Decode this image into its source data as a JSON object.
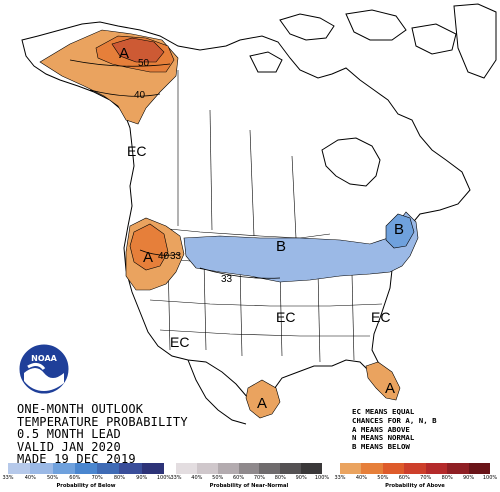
{
  "title_lines": [
    "ONE-MONTH OUTLOOK",
    "TEMPERATURE PROBABILITY",
    "0.5 MONTH LEAD",
    "VALID JAN 2020",
    "MADE 19 DEC 2019"
  ],
  "legend_lines": [
    "EC MEANS EQUAL",
    "CHANCES FOR A, N, B",
    "A MEANS ABOVE",
    "N MEANS NORMAL",
    "B MEANS BELOW"
  ],
  "logo_text": "NOAA",
  "map_labels": {
    "alaska_a": "A",
    "contour_50": "50",
    "contour_40_ak": "40",
    "ec_west_canada": "EC",
    "pnw_a": "A",
    "pnw_40": "40",
    "pnw_33": "33",
    "plains_33": "33",
    "b_central": "B",
    "b_northeast": "B",
    "ec_sw": "EC",
    "ec_central": "EC",
    "ec_east": "EC",
    "texas_a": "A",
    "florida_a": "A"
  },
  "scales": [
    {
      "title": "Probability of Below",
      "ticks": [
        "33%",
        "40%",
        "50%",
        "60%",
        "70%",
        "80%",
        "90%",
        "100%"
      ],
      "colors": [
        "#b6c9ea",
        "#9bb9e6",
        "#6fa1dd",
        "#4a86cf",
        "#3f6bb5",
        "#3a4e9a",
        "#2d3378"
      ]
    },
    {
      "title": "Probability of Near-Normal",
      "ticks": [
        "33%",
        "40%",
        "50%",
        "60%",
        "70%",
        "80%",
        "90%",
        "100%"
      ],
      "colors": [
        "#e3dde0",
        "#cfc7cb",
        "#b3abaf",
        "#8f898c",
        "#6f6b6d",
        "#545153",
        "#3a3839"
      ]
    },
    {
      "title": "Probability of Above",
      "ticks": [
        "33%",
        "40%",
        "50%",
        "60%",
        "70%",
        "80%",
        "90%",
        "100%"
      ],
      "colors": [
        "#eaa35f",
        "#e67f3a",
        "#de5b2b",
        "#cd3f2b",
        "#b42a2b",
        "#8f1f24",
        "#6a1418"
      ]
    }
  ],
  "colors": {
    "above_light": "#eaa35f",
    "above_mid": "#e67f3a",
    "above_dark": "#cd5a34",
    "below_light": "#9bb9e6",
    "below_mid": "#6fa1dd"
  }
}
